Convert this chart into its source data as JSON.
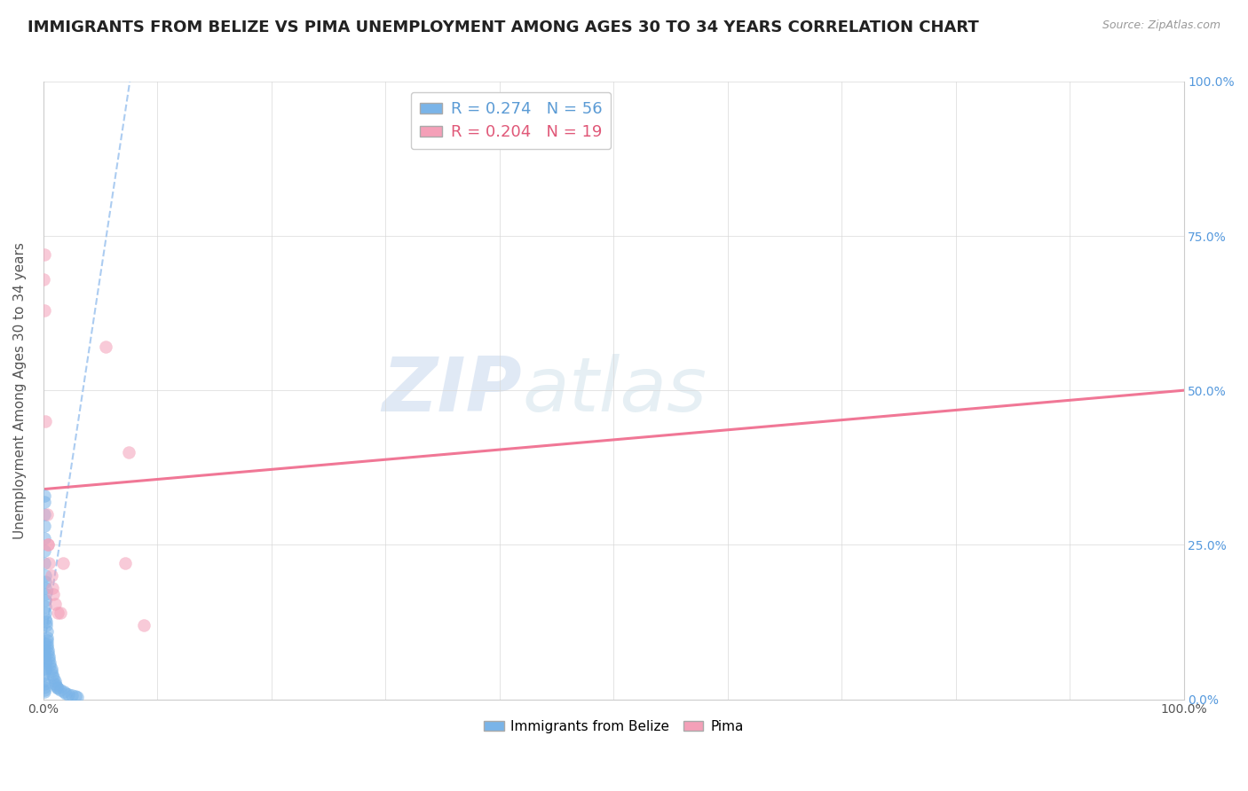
{
  "title": "IMMIGRANTS FROM BELIZE VS PIMA UNEMPLOYMENT AMONG AGES 30 TO 34 YEARS CORRELATION CHART",
  "source": "Source: ZipAtlas.com",
  "ylabel": "Unemployment Among Ages 30 to 34 years",
  "watermark_zip": "ZIP",
  "watermark_atlas": "atlas",
  "blue_scatter_x": [
    0.0008,
    0.001,
    0.001,
    0.0012,
    0.0013,
    0.0014,
    0.0015,
    0.0016,
    0.0017,
    0.0018,
    0.002,
    0.002,
    0.002,
    0.0022,
    0.0025,
    0.003,
    0.003,
    0.003,
    0.0032,
    0.0035,
    0.004,
    0.004,
    0.005,
    0.005,
    0.006,
    0.006,
    0.007,
    0.007,
    0.008,
    0.009,
    0.01,
    0.01,
    0.011,
    0.012,
    0.013,
    0.015,
    0.018,
    0.02,
    0.022,
    0.025,
    0.028,
    0.03,
    0.001,
    0.001,
    0.0005,
    0.0005,
    0.0005,
    0.0006,
    0.0006,
    0.0007,
    0.0007,
    0.001,
    0.001,
    0.001,
    0.0015,
    0.002
  ],
  "blue_scatter_y": [
    0.3,
    0.28,
    0.26,
    0.24,
    0.22,
    0.2,
    0.19,
    0.18,
    0.17,
    0.16,
    0.15,
    0.14,
    0.13,
    0.125,
    0.12,
    0.11,
    0.1,
    0.095,
    0.09,
    0.085,
    0.08,
    0.075,
    0.07,
    0.065,
    0.06,
    0.055,
    0.05,
    0.045,
    0.04,
    0.035,
    0.03,
    0.025,
    0.022,
    0.02,
    0.018,
    0.015,
    0.012,
    0.01,
    0.008,
    0.006,
    0.005,
    0.004,
    0.32,
    0.33,
    0.05,
    0.04,
    0.03,
    0.025,
    0.02,
    0.015,
    0.012,
    0.09,
    0.08,
    0.07,
    0.06,
    0.05
  ],
  "pink_scatter_x": [
    0.0005,
    0.001,
    0.002,
    0.003,
    0.004,
    0.005,
    0.007,
    0.008,
    0.009,
    0.01,
    0.013,
    0.015,
    0.017,
    0.072,
    0.075,
    0.088,
    0.001,
    0.004,
    0.055
  ],
  "pink_scatter_y": [
    0.68,
    0.63,
    0.45,
    0.3,
    0.25,
    0.22,
    0.2,
    0.18,
    0.17,
    0.155,
    0.14,
    0.14,
    0.22,
    0.22,
    0.4,
    0.12,
    0.72,
    0.25,
    0.57
  ],
  "blue_line_x": [
    0.001,
    0.08
  ],
  "blue_line_y": [
    0.09,
    1.05
  ],
  "pink_line_x": [
    0.0,
    1.0
  ],
  "pink_line_y": [
    0.34,
    0.5
  ],
  "xlim": [
    0.0,
    1.0
  ],
  "ylim": [
    0.0,
    1.0
  ],
  "scatter_size": 100,
  "scatter_alpha": 0.55,
  "blue_color": "#7ab4e8",
  "pink_color": "#f4a0b8",
  "blue_line_color": "#9ec4ef",
  "pink_line_color": "#f07090",
  "background_color": "#ffffff",
  "grid_color": "#d8d8d8",
  "title_fontsize": 13,
  "axis_label_fontsize": 11,
  "right_ytick_positions": [
    0.0,
    0.25,
    0.5,
    0.75,
    1.0
  ],
  "right_ytick_labels": [
    "0.0%",
    "25.0%",
    "50.0%",
    "75.0%",
    "100.0%"
  ]
}
